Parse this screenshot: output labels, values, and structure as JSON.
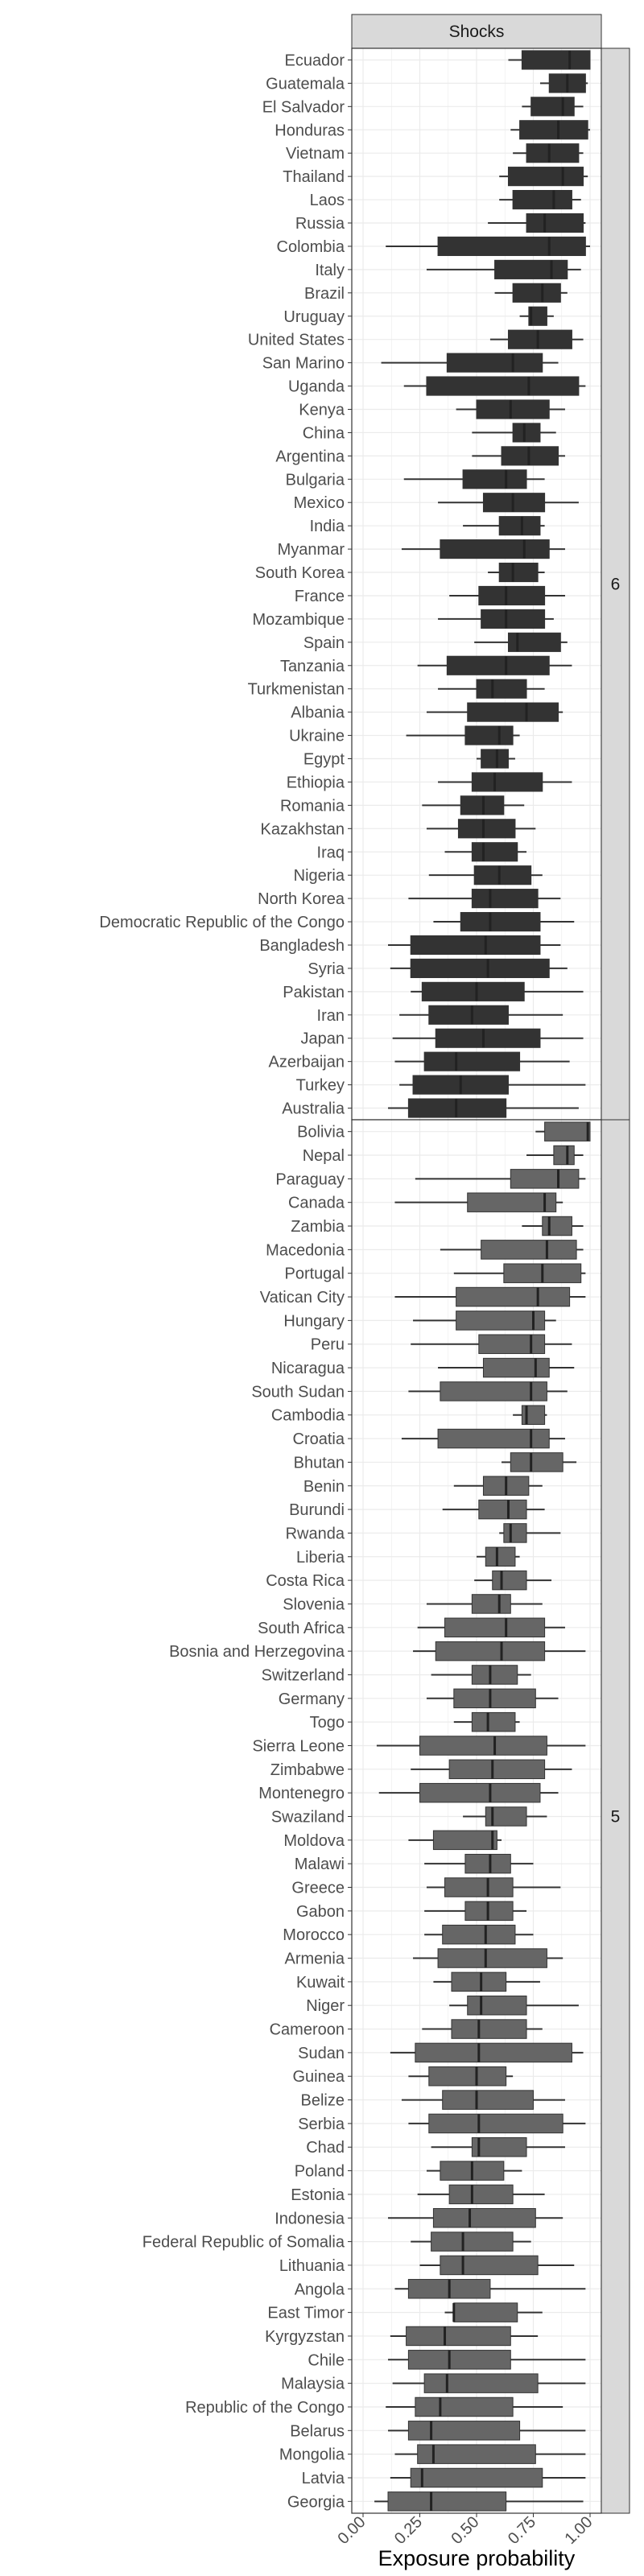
{
  "chart_data": {
    "type": "boxplot",
    "facet_title": "Shocks",
    "xlabel": "Exposure probability",
    "xlim": [
      0,
      1
    ],
    "xticks": [
      "0.00",
      "0.25",
      "0.50",
      "0.75",
      "1.00"
    ],
    "grid": true,
    "colors": {
      "panel6_box": "#333333",
      "panel5_box": "#666666",
      "strip": "#d9d9d9",
      "grid": "#ebebeb"
    },
    "panels": [
      {
        "label": "6",
        "rows": [
          {
            "name": "Ecuador",
            "lo": 0.64,
            "q1": 0.7,
            "med": 0.91,
            "q3": 1.0,
            "hi": 1.0
          },
          {
            "name": "Guatemala",
            "lo": 0.78,
            "q1": 0.82,
            "med": 0.9,
            "q3": 0.98,
            "hi": 0.99
          },
          {
            "name": "El Salvador",
            "lo": 0.7,
            "q1": 0.74,
            "med": 0.88,
            "q3": 0.93,
            "hi": 0.97
          },
          {
            "name": "Honduras",
            "lo": 0.65,
            "q1": 0.69,
            "med": 0.86,
            "q3": 0.99,
            "hi": 1.0
          },
          {
            "name": "Vietnam",
            "lo": 0.66,
            "q1": 0.72,
            "med": 0.82,
            "q3": 0.95,
            "hi": 0.97
          },
          {
            "name": "Thailand",
            "lo": 0.6,
            "q1": 0.64,
            "med": 0.88,
            "q3": 0.97,
            "hi": 0.99
          },
          {
            "name": "Laos",
            "lo": 0.6,
            "q1": 0.66,
            "med": 0.84,
            "q3": 0.92,
            "hi": 0.96
          },
          {
            "name": "Russia",
            "lo": 0.55,
            "q1": 0.72,
            "med": 0.8,
            "q3": 0.97,
            "hi": 0.98
          },
          {
            "name": "Colombia",
            "lo": 0.1,
            "q1": 0.33,
            "med": 0.82,
            "q3": 0.98,
            "hi": 1.0
          },
          {
            "name": "Italy",
            "lo": 0.28,
            "q1": 0.58,
            "med": 0.83,
            "q3": 0.9,
            "hi": 0.96
          },
          {
            "name": "Brazil",
            "lo": 0.58,
            "q1": 0.66,
            "med": 0.79,
            "q3": 0.87,
            "hi": 0.9
          },
          {
            "name": "Uruguay",
            "lo": 0.69,
            "q1": 0.73,
            "med": 0.74,
            "q3": 0.81,
            "hi": 0.84
          },
          {
            "name": "United States",
            "lo": 0.56,
            "q1": 0.64,
            "med": 0.77,
            "q3": 0.92,
            "hi": 0.97
          },
          {
            "name": "San Marino",
            "lo": 0.08,
            "q1": 0.37,
            "med": 0.66,
            "q3": 0.79,
            "hi": 0.86
          },
          {
            "name": "Uganda",
            "lo": 0.18,
            "q1": 0.28,
            "med": 0.73,
            "q3": 0.95,
            "hi": 0.98
          },
          {
            "name": "Kenya",
            "lo": 0.41,
            "q1": 0.5,
            "med": 0.65,
            "q3": 0.82,
            "hi": 0.89
          },
          {
            "name": "China",
            "lo": 0.48,
            "q1": 0.66,
            "med": 0.71,
            "q3": 0.78,
            "hi": 0.85
          },
          {
            "name": "Argentina",
            "lo": 0.48,
            "q1": 0.61,
            "med": 0.73,
            "q3": 0.86,
            "hi": 0.89
          },
          {
            "name": "Bulgaria",
            "lo": 0.18,
            "q1": 0.44,
            "med": 0.63,
            "q3": 0.72,
            "hi": 0.8
          },
          {
            "name": "Mexico",
            "lo": 0.33,
            "q1": 0.53,
            "med": 0.66,
            "q3": 0.8,
            "hi": 0.95
          },
          {
            "name": "India",
            "lo": 0.44,
            "q1": 0.6,
            "med": 0.7,
            "q3": 0.78,
            "hi": 0.8
          },
          {
            "name": "Myanmar",
            "lo": 0.17,
            "q1": 0.34,
            "med": 0.71,
            "q3": 0.82,
            "hi": 0.89
          },
          {
            "name": "South Korea",
            "lo": 0.55,
            "q1": 0.6,
            "med": 0.66,
            "q3": 0.77,
            "hi": 0.8
          },
          {
            "name": "France",
            "lo": 0.38,
            "q1": 0.51,
            "med": 0.63,
            "q3": 0.8,
            "hi": 0.89
          },
          {
            "name": "Mozambique",
            "lo": 0.33,
            "q1": 0.52,
            "med": 0.63,
            "q3": 0.8,
            "hi": 0.84
          },
          {
            "name": "Spain",
            "lo": 0.49,
            "q1": 0.64,
            "med": 0.68,
            "q3": 0.87,
            "hi": 0.9
          },
          {
            "name": "Tanzania",
            "lo": 0.24,
            "q1": 0.37,
            "med": 0.63,
            "q3": 0.82,
            "hi": 0.92
          },
          {
            "name": "Turkmenistan",
            "lo": 0.33,
            "q1": 0.5,
            "med": 0.57,
            "q3": 0.72,
            "hi": 0.8
          },
          {
            "name": "Albania",
            "lo": 0.28,
            "q1": 0.46,
            "med": 0.72,
            "q3": 0.86,
            "hi": 0.88
          },
          {
            "name": "Ukraine",
            "lo": 0.19,
            "q1": 0.45,
            "med": 0.6,
            "q3": 0.66,
            "hi": 0.69
          },
          {
            "name": "Egypt",
            "lo": 0.5,
            "q1": 0.52,
            "med": 0.59,
            "q3": 0.64,
            "hi": 0.67
          },
          {
            "name": "Ethiopia",
            "lo": 0.33,
            "q1": 0.48,
            "med": 0.58,
            "q3": 0.79,
            "hi": 0.92
          },
          {
            "name": "Romania",
            "lo": 0.26,
            "q1": 0.43,
            "med": 0.53,
            "q3": 0.62,
            "hi": 0.71
          },
          {
            "name": "Kazakhstan",
            "lo": 0.28,
            "q1": 0.42,
            "med": 0.53,
            "q3": 0.67,
            "hi": 0.76
          },
          {
            "name": "Iraq",
            "lo": 0.36,
            "q1": 0.48,
            "med": 0.53,
            "q3": 0.68,
            "hi": 0.72
          },
          {
            "name": "Nigeria",
            "lo": 0.29,
            "q1": 0.49,
            "med": 0.6,
            "q3": 0.74,
            "hi": 0.79
          },
          {
            "name": "North Korea",
            "lo": 0.2,
            "q1": 0.48,
            "med": 0.56,
            "q3": 0.77,
            "hi": 0.87
          },
          {
            "name": "Democratic Republic of the Congo",
            "lo": 0.31,
            "q1": 0.43,
            "med": 0.56,
            "q3": 0.78,
            "hi": 0.93
          },
          {
            "name": "Bangladesh",
            "lo": 0.11,
            "q1": 0.21,
            "med": 0.54,
            "q3": 0.78,
            "hi": 0.87
          },
          {
            "name": "Syria",
            "lo": 0.12,
            "q1": 0.21,
            "med": 0.55,
            "q3": 0.82,
            "hi": 0.9
          },
          {
            "name": "Pakistan",
            "lo": 0.21,
            "q1": 0.26,
            "med": 0.5,
            "q3": 0.71,
            "hi": 0.97
          },
          {
            "name": "Iran",
            "lo": 0.16,
            "q1": 0.29,
            "med": 0.48,
            "q3": 0.64,
            "hi": 0.88
          },
          {
            "name": "Japan",
            "lo": 0.13,
            "q1": 0.32,
            "med": 0.53,
            "q3": 0.78,
            "hi": 0.97
          },
          {
            "name": "Azerbaijan",
            "lo": 0.14,
            "q1": 0.27,
            "med": 0.41,
            "q3": 0.69,
            "hi": 0.91
          },
          {
            "name": "Turkey",
            "lo": 0.16,
            "q1": 0.22,
            "med": 0.43,
            "q3": 0.64,
            "hi": 0.98
          },
          {
            "name": "Australia",
            "lo": 0.11,
            "q1": 0.2,
            "med": 0.41,
            "q3": 0.63,
            "hi": 0.95
          }
        ]
      },
      {
        "label": "5",
        "rows": [
          {
            "name": "Bolivia",
            "lo": 0.76,
            "q1": 0.8,
            "med": 0.99,
            "q3": 1.0,
            "hi": 1.0
          },
          {
            "name": "Nepal",
            "lo": 0.72,
            "q1": 0.84,
            "med": 0.9,
            "q3": 0.93,
            "hi": 0.97
          },
          {
            "name": "Paraguay",
            "lo": 0.23,
            "q1": 0.65,
            "med": 0.86,
            "q3": 0.95,
            "hi": 0.98
          },
          {
            "name": "Canada",
            "lo": 0.14,
            "q1": 0.46,
            "med": 0.8,
            "q3": 0.85,
            "hi": 0.88
          },
          {
            "name": "Zambia",
            "lo": 0.7,
            "q1": 0.79,
            "med": 0.82,
            "q3": 0.92,
            "hi": 0.97
          },
          {
            "name": "Macedonia",
            "lo": 0.34,
            "q1": 0.52,
            "med": 0.81,
            "q3": 0.94,
            "hi": 0.97
          },
          {
            "name": "Portugal",
            "lo": 0.4,
            "q1": 0.62,
            "med": 0.79,
            "q3": 0.96,
            "hi": 0.98
          },
          {
            "name": "Vatican City",
            "lo": 0.14,
            "q1": 0.41,
            "med": 0.77,
            "q3": 0.91,
            "hi": 0.98
          },
          {
            "name": "Hungary",
            "lo": 0.22,
            "q1": 0.41,
            "med": 0.75,
            "q3": 0.8,
            "hi": 0.85
          },
          {
            "name": "Peru",
            "lo": 0.21,
            "q1": 0.51,
            "med": 0.74,
            "q3": 0.8,
            "hi": 0.92
          },
          {
            "name": "Nicaragua",
            "lo": 0.33,
            "q1": 0.53,
            "med": 0.76,
            "q3": 0.82,
            "hi": 0.93
          },
          {
            "name": "South Sudan",
            "lo": 0.2,
            "q1": 0.34,
            "med": 0.74,
            "q3": 0.81,
            "hi": 0.9
          },
          {
            "name": "Cambodia",
            "lo": 0.66,
            "q1": 0.7,
            "med": 0.72,
            "q3": 0.8,
            "hi": 0.81
          },
          {
            "name": "Croatia",
            "lo": 0.17,
            "q1": 0.33,
            "med": 0.74,
            "q3": 0.82,
            "hi": 0.89
          },
          {
            "name": "Bhutan",
            "lo": 0.61,
            "q1": 0.65,
            "med": 0.74,
            "q3": 0.88,
            "hi": 0.94
          },
          {
            "name": "Benin",
            "lo": 0.4,
            "q1": 0.53,
            "med": 0.63,
            "q3": 0.73,
            "hi": 0.79
          },
          {
            "name": "Burundi",
            "lo": 0.35,
            "q1": 0.51,
            "med": 0.64,
            "q3": 0.72,
            "hi": 0.8
          },
          {
            "name": "Rwanda",
            "lo": 0.6,
            "q1": 0.62,
            "med": 0.65,
            "q3": 0.72,
            "hi": 0.87
          },
          {
            "name": "Liberia",
            "lo": 0.5,
            "q1": 0.54,
            "med": 0.59,
            "q3": 0.67,
            "hi": 0.69
          },
          {
            "name": "Costa Rica",
            "lo": 0.49,
            "q1": 0.57,
            "med": 0.61,
            "q3": 0.72,
            "hi": 0.83
          },
          {
            "name": "Slovenia",
            "lo": 0.28,
            "q1": 0.48,
            "med": 0.6,
            "q3": 0.65,
            "hi": 0.79
          },
          {
            "name": "South Africa",
            "lo": 0.24,
            "q1": 0.36,
            "med": 0.63,
            "q3": 0.8,
            "hi": 0.89
          },
          {
            "name": "Bosnia and Herzegovina",
            "lo": 0.22,
            "q1": 0.32,
            "med": 0.61,
            "q3": 0.8,
            "hi": 0.98
          },
          {
            "name": "Switzerland",
            "lo": 0.3,
            "q1": 0.48,
            "med": 0.56,
            "q3": 0.68,
            "hi": 0.74
          },
          {
            "name": "Germany",
            "lo": 0.28,
            "q1": 0.4,
            "med": 0.56,
            "q3": 0.76,
            "hi": 0.86
          },
          {
            "name": "Togo",
            "lo": 0.4,
            "q1": 0.48,
            "med": 0.55,
            "q3": 0.67,
            "hi": 0.69
          },
          {
            "name": "Sierra Leone",
            "lo": 0.06,
            "q1": 0.25,
            "med": 0.58,
            "q3": 0.81,
            "hi": 0.98
          },
          {
            "name": "Zimbabwe",
            "lo": 0.21,
            "q1": 0.38,
            "med": 0.57,
            "q3": 0.8,
            "hi": 0.92
          },
          {
            "name": "Montenegro",
            "lo": 0.07,
            "q1": 0.25,
            "med": 0.56,
            "q3": 0.78,
            "hi": 0.86
          },
          {
            "name": "Swaziland",
            "lo": 0.44,
            "q1": 0.54,
            "med": 0.57,
            "q3": 0.72,
            "hi": 0.81
          },
          {
            "name": "Moldova",
            "lo": 0.2,
            "q1": 0.31,
            "med": 0.57,
            "q3": 0.59,
            "hi": 0.61
          },
          {
            "name": "Malawi",
            "lo": 0.27,
            "q1": 0.45,
            "med": 0.56,
            "q3": 0.65,
            "hi": 0.75
          },
          {
            "name": "Greece",
            "lo": 0.28,
            "q1": 0.36,
            "med": 0.55,
            "q3": 0.66,
            "hi": 0.87
          },
          {
            "name": "Gabon",
            "lo": 0.27,
            "q1": 0.45,
            "med": 0.55,
            "q3": 0.66,
            "hi": 0.72
          },
          {
            "name": "Morocco",
            "lo": 0.27,
            "q1": 0.35,
            "med": 0.54,
            "q3": 0.67,
            "hi": 0.75
          },
          {
            "name": "Armenia",
            "lo": 0.22,
            "q1": 0.33,
            "med": 0.54,
            "q3": 0.81,
            "hi": 0.88
          },
          {
            "name": "Kuwait",
            "lo": 0.31,
            "q1": 0.39,
            "med": 0.52,
            "q3": 0.63,
            "hi": 0.78
          },
          {
            "name": "Niger",
            "lo": 0.38,
            "q1": 0.46,
            "med": 0.52,
            "q3": 0.72,
            "hi": 0.95
          },
          {
            "name": "Cameroon",
            "lo": 0.26,
            "q1": 0.39,
            "med": 0.51,
            "q3": 0.72,
            "hi": 0.79
          },
          {
            "name": "Sudan",
            "lo": 0.12,
            "q1": 0.23,
            "med": 0.51,
            "q3": 0.92,
            "hi": 0.97
          },
          {
            "name": "Guinea",
            "lo": 0.2,
            "q1": 0.29,
            "med": 0.5,
            "q3": 0.63,
            "hi": 0.66
          },
          {
            "name": "Belize",
            "lo": 0.17,
            "q1": 0.35,
            "med": 0.5,
            "q3": 0.75,
            "hi": 0.89
          },
          {
            "name": "Serbia",
            "lo": 0.2,
            "q1": 0.29,
            "med": 0.51,
            "q3": 0.88,
            "hi": 0.98
          },
          {
            "name": "Chad",
            "lo": 0.3,
            "q1": 0.48,
            "med": 0.51,
            "q3": 0.72,
            "hi": 0.89
          },
          {
            "name": "Poland",
            "lo": 0.28,
            "q1": 0.34,
            "med": 0.48,
            "q3": 0.62,
            "hi": 0.7
          },
          {
            "name": "Estonia",
            "lo": 0.24,
            "q1": 0.38,
            "med": 0.48,
            "q3": 0.66,
            "hi": 0.8
          },
          {
            "name": "Indonesia",
            "lo": 0.11,
            "q1": 0.31,
            "med": 0.47,
            "q3": 0.76,
            "hi": 0.88
          },
          {
            "name": "Federal Republic of Somalia",
            "lo": 0.21,
            "q1": 0.3,
            "med": 0.44,
            "q3": 0.66,
            "hi": 0.74
          },
          {
            "name": "Lithuania",
            "lo": 0.25,
            "q1": 0.34,
            "med": 0.44,
            "q3": 0.77,
            "hi": 0.93
          },
          {
            "name": "Angola",
            "lo": 0.14,
            "q1": 0.2,
            "med": 0.38,
            "q3": 0.56,
            "hi": 0.98
          },
          {
            "name": "East Timor",
            "lo": 0.36,
            "q1": 0.4,
            "med": 0.4,
            "q3": 0.68,
            "hi": 0.79
          },
          {
            "name": "Kyrgyzstan",
            "lo": 0.12,
            "q1": 0.19,
            "med": 0.36,
            "q3": 0.65,
            "hi": 0.77
          },
          {
            "name": "Chile",
            "lo": 0.11,
            "q1": 0.2,
            "med": 0.38,
            "q3": 0.65,
            "hi": 0.98
          },
          {
            "name": "Malaysia",
            "lo": 0.13,
            "q1": 0.27,
            "med": 0.37,
            "q3": 0.77,
            "hi": 0.98
          },
          {
            "name": "Republic of the Congo",
            "lo": 0.1,
            "q1": 0.23,
            "med": 0.34,
            "q3": 0.66,
            "hi": 0.88
          },
          {
            "name": "Belarus",
            "lo": 0.11,
            "q1": 0.2,
            "med": 0.3,
            "q3": 0.69,
            "hi": 0.98
          },
          {
            "name": "Mongolia",
            "lo": 0.14,
            "q1": 0.24,
            "med": 0.31,
            "q3": 0.76,
            "hi": 0.98
          },
          {
            "name": "Latvia",
            "lo": 0.12,
            "q1": 0.21,
            "med": 0.26,
            "q3": 0.79,
            "hi": 0.98
          },
          {
            "name": "Georgia",
            "lo": 0.05,
            "q1": 0.11,
            "med": 0.3,
            "q3": 0.63,
            "hi": 0.97
          }
        ]
      }
    ]
  }
}
